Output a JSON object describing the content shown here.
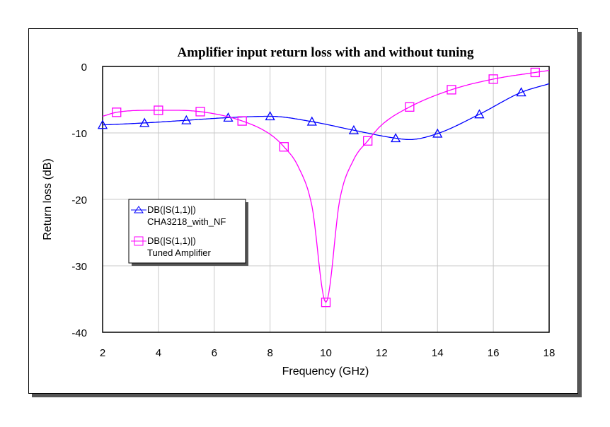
{
  "chart_data": {
    "type": "line",
    "title": "Amplifier input return loss with and without tuning",
    "xlabel": "Frequency (GHz)",
    "ylabel": "Return loss (dB)",
    "xlim": [
      2,
      18
    ],
    "ylim": [
      -40,
      0
    ],
    "xticks": [
      2,
      4,
      6,
      8,
      10,
      12,
      14,
      16,
      18
    ],
    "yticks": [
      0,
      -10,
      -20,
      -30,
      -40
    ],
    "grid": true,
    "legend_position": "center-left",
    "series": [
      {
        "name": "DB(|S(1,1)|)",
        "subname": "CHA3218_with_NF",
        "color": "#0000ff",
        "marker": "triangle",
        "x": [
          2,
          3.5,
          5,
          6.5,
          8,
          9.5,
          11,
          12.5,
          13,
          14,
          15.5,
          17,
          18
        ],
        "y": [
          -8.8,
          -8.5,
          -8.1,
          -7.7,
          -7.5,
          -8.3,
          -9.6,
          -10.8,
          -11.0,
          -10.1,
          -7.2,
          -3.9,
          -2.6
        ],
        "marker_x": [
          2,
          3.5,
          5,
          6.5,
          8,
          9.5,
          11,
          12.5,
          14,
          15.5,
          17
        ]
      },
      {
        "name": "DB(|S(1,1)|)",
        "subname": "Tuned Amplifier",
        "color": "#ff00ff",
        "marker": "square",
        "x": [
          2,
          2.5,
          4,
          5.5,
          7,
          8,
          8.5,
          9,
          9.5,
          10,
          10.5,
          11,
          11.5,
          12,
          13,
          14.5,
          16,
          17.5,
          18
        ],
        "y": [
          -7.5,
          -6.9,
          -6.6,
          -6.8,
          -8.2,
          -10.2,
          -12.1,
          -15.0,
          -21.0,
          -35.5,
          -20.0,
          -14.0,
          -11.2,
          -8.8,
          -6.1,
          -3.5,
          -1.9,
          -0.9,
          -0.6
        ],
        "marker_x": [
          2.5,
          4,
          5.5,
          7,
          8.5,
          10,
          11.5,
          13,
          14.5,
          16,
          17.5
        ]
      }
    ]
  }
}
